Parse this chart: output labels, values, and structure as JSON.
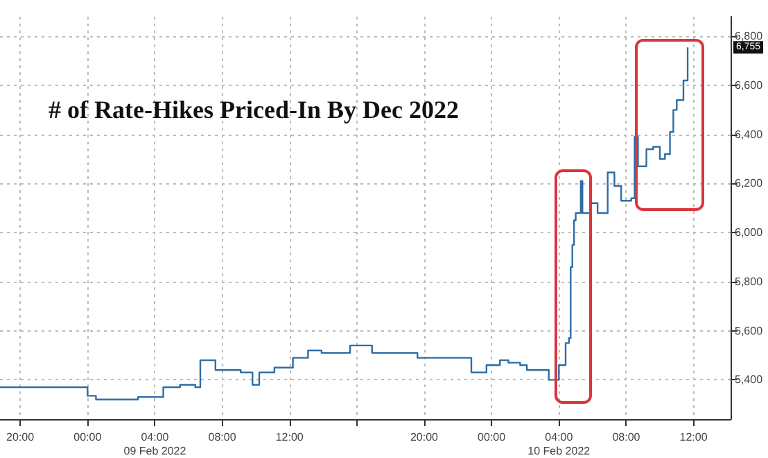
{
  "chart_data": {
    "type": "step",
    "title": "# of Rate-Hikes Priced-In By Dec 2022",
    "xlim": [
      "2022-02-08T18:48",
      "2022-02-10T14:12"
    ],
    "xticks": [
      {
        "value": "2022-02-08T20:00",
        "label": "20:00"
      },
      {
        "value": "2022-02-09T00:00",
        "label": "00:00"
      },
      {
        "value": "2022-02-09T04:00",
        "label": "04:00\n09 Feb 2022"
      },
      {
        "value": "2022-02-09T08:00",
        "label": "08:00"
      },
      {
        "value": "2022-02-09T12:00",
        "label": "12:00"
      },
      {
        "value": "2022-02-09T16:00",
        "label": null
      },
      {
        "value": "2022-02-09T20:00",
        "label": "20:00"
      },
      {
        "value": "2022-02-10T00:00",
        "label": "00:00"
      },
      {
        "value": "2022-02-10T04:00",
        "label": "04:00\n10 Feb 2022"
      },
      {
        "value": "2022-02-10T08:00",
        "label": "08:00"
      },
      {
        "value": "2022-02-10T12:00",
        "label": "12:00"
      }
    ],
    "ylim": [
      5240,
      6880
    ],
    "yticks": [
      {
        "value": 5400,
        "label": "5,400"
      },
      {
        "value": 5600,
        "label": "5,600"
      },
      {
        "value": 5800,
        "label": "5,800"
      },
      {
        "value": 6000,
        "label": "6,000"
      },
      {
        "value": 6200,
        "label": "6,200"
      },
      {
        "value": 6400,
        "label": "6,400"
      },
      {
        "value": 6600,
        "label": "6,600"
      },
      {
        "value": 6800,
        "label": "6,800"
      }
    ],
    "grid": true,
    "series": [
      {
        "color": "#2e6da4",
        "x": [
          "2022-02-08T18:48",
          "2022-02-09T00:00",
          "2022-02-09T00:30",
          "2022-02-09T01:00",
          "2022-02-09T03:00",
          "2022-02-09T04:30",
          "2022-02-09T05:30",
          "2022-02-09T06:24",
          "2022-02-09T06:42",
          "2022-02-09T07:36",
          "2022-02-09T09:06",
          "2022-02-09T09:48",
          "2022-02-09T10:12",
          "2022-02-09T11:06",
          "2022-02-09T12:12",
          "2022-02-09T13:06",
          "2022-02-09T13:54",
          "2022-02-09T15:36",
          "2022-02-09T16:54",
          "2022-02-09T19:36",
          "2022-02-09T22:12",
          "2022-02-09T22:48",
          "2022-02-09T23:42",
          "2022-02-10T00:30",
          "2022-02-10T01:00",
          "2022-02-10T01:42",
          "2022-02-10T02:06",
          "2022-02-10T02:54",
          "2022-02-10T03:24",
          "2022-02-10T04:00",
          "2022-02-10T04:24",
          "2022-02-10T04:36",
          "2022-02-10T04:42",
          "2022-02-10T04:48",
          "2022-02-10T04:54",
          "2022-02-10T05:00",
          "2022-02-10T05:18",
          "2022-02-10T05:24",
          "2022-02-10T05:54",
          "2022-02-10T06:18",
          "2022-02-10T06:54",
          "2022-02-10T07:18",
          "2022-02-10T07:42",
          "2022-02-10T08:18",
          "2022-02-10T08:30",
          "2022-02-10T08:42",
          "2022-02-10T09:12",
          "2022-02-10T09:36",
          "2022-02-10T10:00",
          "2022-02-10T10:18",
          "2022-02-10T10:36",
          "2022-02-10T10:48",
          "2022-02-10T11:00",
          "2022-02-10T11:24",
          "2022-02-10T11:39"
        ],
        "values": [
          5370,
          5335,
          5320,
          5320,
          5330,
          5370,
          5380,
          5370,
          5480,
          5440,
          5430,
          5380,
          5430,
          5450,
          5490,
          5520,
          5510,
          5540,
          5510,
          5490,
          5490,
          5430,
          5460,
          5480,
          5470,
          5460,
          5440,
          5440,
          5400,
          5460,
          5550,
          5570,
          5860,
          5950,
          6050,
          6080,
          6210,
          6080,
          6120,
          6080,
          6245,
          6190,
          6130,
          6140,
          6390,
          6270,
          6340,
          6350,
          6300,
          6320,
          6410,
          6500,
          6540,
          6620,
          6755
        ]
      }
    ],
    "annotations": [
      {
        "text": "6,755",
        "y": 6755
      }
    ]
  }
}
